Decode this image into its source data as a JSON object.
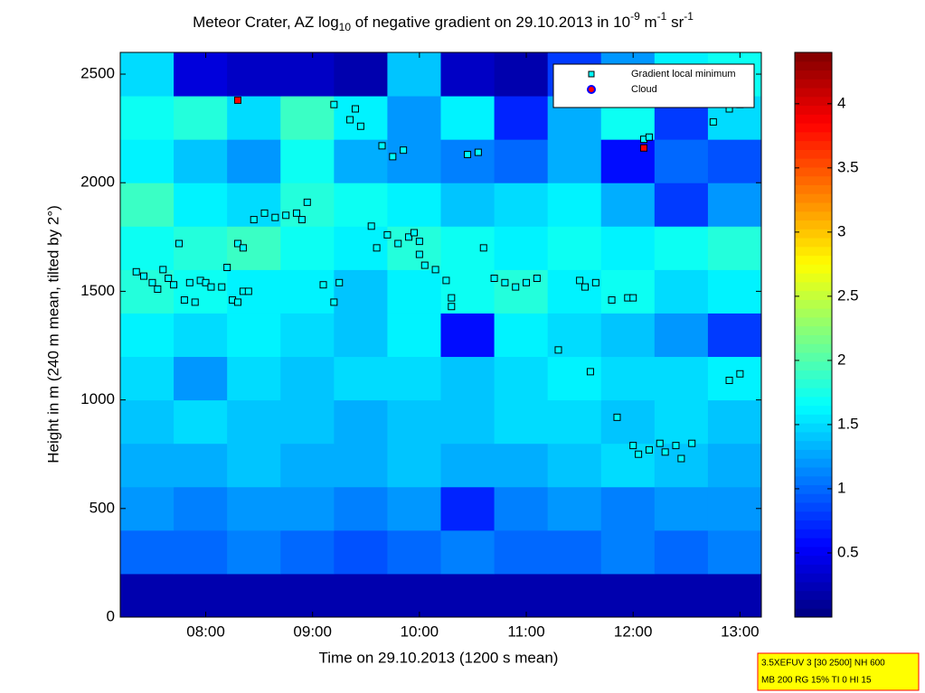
{
  "chart_data": {
    "type": "heatmap",
    "title": [
      "Meteor Crater, AZ log",
      "10",
      " of negative gradient on 29.10.2013 in 10",
      "-9",
      " m",
      "-1",
      " sr",
      "-1"
    ],
    "x_label": "Time on 29.10.2013 (1200 s mean)",
    "y_label": "Height in m (240 m mean, tilted by 2°)",
    "xlim": [
      7.2,
      13.2
    ],
    "ylim": [
      0,
      2600
    ],
    "xticks": [
      {
        "value": 8,
        "label": "08:00"
      },
      {
        "value": 9,
        "label": "09:00"
      },
      {
        "value": 10,
        "label": "10:00"
      },
      {
        "value": 11,
        "label": "11:00"
      },
      {
        "value": 12,
        "label": "12:00"
      },
      {
        "value": 13,
        "label": "13:00"
      }
    ],
    "yticks": [
      0,
      500,
      1000,
      1500,
      2000,
      2500
    ],
    "zlim": [
      0,
      4.4
    ],
    "zticks": [
      0.5,
      1,
      1.5,
      2,
      2.5,
      3,
      3.5,
      4
    ],
    "colormap": "jet",
    "x_edges": [
      7.2,
      7.7,
      8.2,
      8.7,
      9.2,
      9.7,
      10.2,
      10.7,
      11.2,
      11.7,
      12.2,
      12.7,
      13.2
    ],
    "y_edges": [
      0,
      200,
      400,
      600,
      800,
      1000,
      1200,
      1400,
      1600,
      1800,
      2000,
      2200,
      2400,
      2600
    ],
    "z": [
      [
        0.2,
        0.2,
        0.2,
        0.2,
        0.2,
        0.2,
        0.2,
        0.2,
        0.2,
        0.2,
        0.2,
        0.2
      ],
      [
        1.0,
        1.0,
        1.1,
        1.0,
        0.9,
        1.0,
        1.1,
        1.0,
        1.0,
        1.1,
        1.0,
        1.1
      ],
      [
        1.2,
        1.1,
        1.2,
        1.2,
        1.1,
        1.2,
        0.7,
        1.1,
        1.2,
        1.1,
        1.2,
        1.2
      ],
      [
        1.3,
        1.3,
        1.4,
        1.3,
        1.3,
        1.4,
        1.3,
        1.3,
        1.4,
        1.5,
        1.4,
        1.3
      ],
      [
        1.4,
        1.5,
        1.4,
        1.4,
        1.3,
        1.4,
        1.4,
        1.5,
        1.5,
        1.4,
        1.5,
        1.4
      ],
      [
        1.5,
        1.2,
        1.5,
        1.4,
        1.5,
        1.5,
        1.4,
        1.5,
        1.6,
        1.5,
        1.5,
        1.6
      ],
      [
        1.6,
        1.5,
        1.6,
        1.5,
        1.4,
        1.6,
        0.6,
        1.6,
        1.5,
        1.4,
        1.2,
        0.8
      ],
      [
        1.8,
        1.7,
        1.6,
        1.6,
        1.4,
        1.6,
        1.7,
        1.8,
        1.6,
        1.7,
        1.5,
        1.6
      ],
      [
        1.7,
        1.8,
        1.9,
        1.7,
        1.6,
        1.8,
        1.7,
        1.6,
        1.7,
        1.6,
        1.7,
        1.8
      ],
      [
        1.9,
        1.6,
        1.5,
        1.8,
        1.7,
        1.6,
        1.4,
        1.5,
        1.6,
        1.3,
        0.8,
        1.2
      ],
      [
        1.6,
        1.4,
        1.2,
        1.7,
        1.3,
        1.2,
        1.1,
        1.0,
        1.3,
        0.6,
        1.0,
        0.9
      ],
      [
        1.7,
        1.8,
        1.5,
        1.9,
        1.6,
        1.2,
        1.6,
        0.7,
        1.3,
        1.7,
        0.8,
        1.5
      ],
      [
        1.5,
        0.4,
        0.3,
        0.3,
        0.2,
        1.4,
        0.3,
        0.2,
        0.8,
        1.2,
        1.6,
        1.7
      ]
    ],
    "series": [
      {
        "name": "Gradient local minimum",
        "color": "#00ffff",
        "marker": "square",
        "x": [
          7.35,
          7.42,
          7.5,
          7.55,
          7.6,
          7.65,
          7.7,
          7.75,
          7.8,
          7.85,
          7.9,
          7.95,
          8.0,
          8.05,
          8.15,
          8.2,
          8.25,
          8.3,
          8.35,
          8.4,
          8.3,
          8.35,
          8.45,
          8.55,
          8.65,
          8.75,
          8.85,
          8.9,
          8.95,
          9.1,
          9.2,
          9.25,
          9.2,
          9.35,
          9.4,
          9.45,
          9.55,
          9.6,
          9.7,
          9.8,
          9.9,
          9.95,
          9.65,
          9.75,
          9.85,
          10.0,
          10.05,
          10.15,
          10.25,
          10.3,
          10.3,
          10.0,
          10.45,
          10.55,
          10.6,
          10.7,
          10.8,
          10.9,
          11.0,
          11.1,
          11.3,
          11.5,
          11.55,
          11.6,
          11.65,
          11.85,
          11.8,
          11.95,
          12.0,
          12.0,
          12.05,
          12.15,
          12.25,
          12.3,
          12.4,
          12.45,
          12.55,
          12.1,
          12.15,
          12.75,
          12.9,
          13.0,
          12.9,
          13.0
        ],
        "y": [
          1590,
          1570,
          1540,
          1510,
          1600,
          1560,
          1530,
          1720,
          1460,
          1540,
          1450,
          1550,
          1540,
          1520,
          1520,
          1610,
          1460,
          1450,
          1500,
          1500,
          1720,
          1700,
          1830,
          1860,
          1840,
          1850,
          1860,
          1830,
          1910,
          1530,
          1450,
          1540,
          2360,
          2290,
          2340,
          2260,
          1800,
          1700,
          1760,
          1720,
          1750,
          1770,
          2170,
          2120,
          2150,
          1670,
          1620,
          1600,
          1550,
          1470,
          1430,
          1730,
          2130,
          2140,
          1700,
          1560,
          1540,
          1520,
          1540,
          1560,
          1230,
          1550,
          1520,
          1130,
          1540,
          920,
          1460,
          1470,
          1470,
          790,
          750,
          770,
          800,
          760,
          790,
          730,
          800,
          2200,
          2210,
          2280,
          2340,
          2360,
          1090,
          1120
        ]
      },
      {
        "name": "Cloud",
        "color": "#ff0000",
        "marker": "square",
        "x": [
          8.3,
          12.1
        ],
        "y": [
          2380,
          2160
        ]
      }
    ],
    "legend": "upper right",
    "annotations": [
      "3.5XEFUV 3 [30 2500] NH 600",
      "MB 200 RG 15% TI 0 HI 15"
    ]
  }
}
